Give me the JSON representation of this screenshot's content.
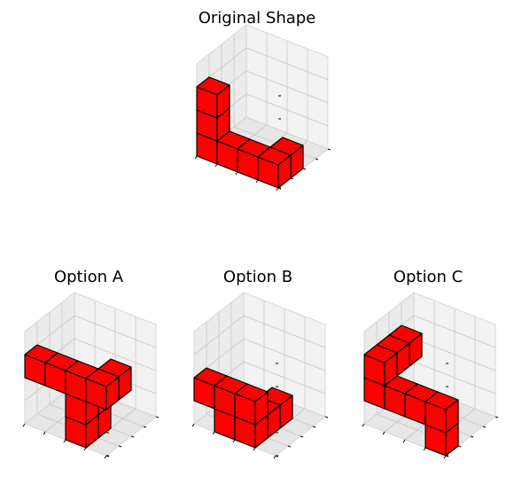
{
  "colors": {
    "cube_fill": "#ff0000",
    "cube_edge": "#000000",
    "pane_back": "#f2f2f2",
    "pane_side": "#ebebeb",
    "pane_floor": "#e6e6e6",
    "grid": "#c8c8c8"
  },
  "panels": [
    {
      "id": "original",
      "title": "Original Shape",
      "cubes": [
        [
          0,
          0,
          0
        ],
        [
          0,
          0,
          1
        ],
        [
          0,
          0,
          2
        ],
        [
          1,
          0,
          0
        ],
        [
          2,
          0,
          0
        ],
        [
          3,
          0,
          0
        ],
        [
          3,
          1,
          0
        ]
      ]
    },
    {
      "id": "option-a",
      "title": "Option A",
      "cubes": [
        [
          0,
          0,
          2
        ],
        [
          1,
          0,
          2
        ],
        [
          2,
          0,
          2
        ],
        [
          2,
          0,
          1
        ],
        [
          2,
          0,
          0
        ],
        [
          2,
          1,
          0
        ],
        [
          3,
          0,
          2
        ],
        [
          3,
          1,
          2
        ]
      ]
    },
    {
      "id": "option-b",
      "title": "Option B",
      "cubes": [
        [
          0,
          0,
          1
        ],
        [
          1,
          0,
          1
        ],
        [
          2,
          0,
          1
        ],
        [
          2,
          0,
          0
        ],
        [
          2,
          1,
          0
        ],
        [
          2,
          2,
          0
        ],
        [
          1,
          0,
          0
        ]
      ]
    },
    {
      "id": "option-c",
      "title": "Option C",
      "cubes": [
        [
          0,
          0,
          2
        ],
        [
          0,
          1,
          2
        ],
        [
          0,
          2,
          2
        ],
        [
          0,
          0,
          1
        ],
        [
          1,
          0,
          1
        ],
        [
          2,
          0,
          1
        ],
        [
          3,
          0,
          1
        ],
        [
          3,
          0,
          0
        ]
      ]
    }
  ]
}
